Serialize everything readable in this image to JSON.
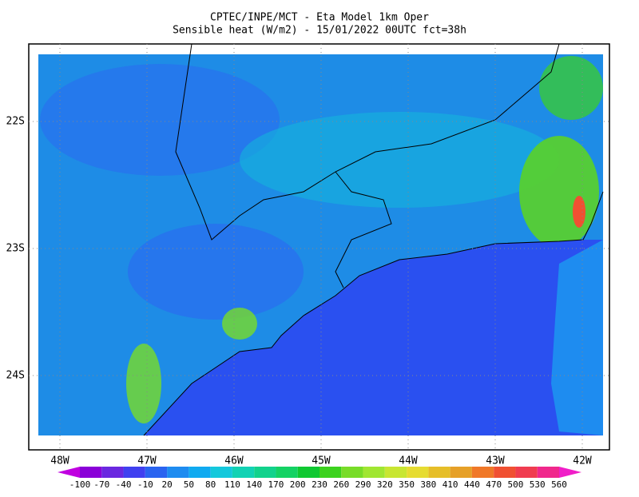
{
  "title": [
    "CPTEC/INPE/MCT -  Eta Model 1km Oper",
    "Sensible heat (W/m2) - 15/01/2022 00UTC fct=38h"
  ],
  "map": {
    "lon_labels": [
      "48W",
      "47W",
      "46W",
      "45W",
      "44W",
      "43W",
      "42W"
    ],
    "lat_labels": [
      "22S",
      "23S",
      "24S"
    ]
  },
  "colorbar": {
    "levels": [
      -100,
      -70,
      -40,
      -10,
      20,
      50,
      80,
      110,
      140,
      170,
      200,
      230,
      260,
      290,
      320,
      350,
      380,
      410,
      440,
      470,
      500,
      530,
      560
    ],
    "colors": [
      "#c000e0",
      "#8a00d8",
      "#6a28e0",
      "#4040f0",
      "#2a64f0",
      "#1e8cf0",
      "#10aaf0",
      "#14c8dc",
      "#12d2b4",
      "#12d28c",
      "#14d264",
      "#10c832",
      "#3cd21e",
      "#78dc28",
      "#a0e632",
      "#c8e632",
      "#e6dc32",
      "#e6be28",
      "#e6a028",
      "#f07828",
      "#f05032",
      "#f03c50",
      "#f0288c",
      "#f01ec8"
    ]
  }
}
